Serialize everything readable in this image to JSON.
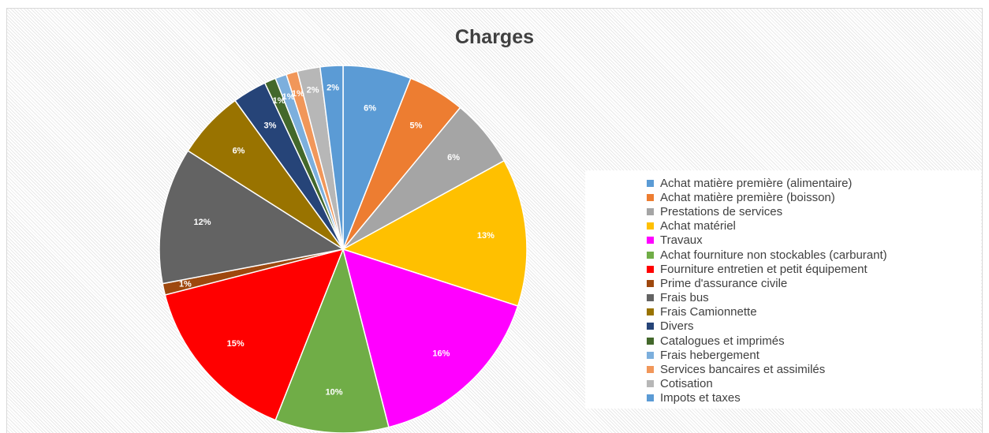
{
  "chart_data": {
    "type": "pie",
    "title": "Charges",
    "legend_position": "right",
    "slices": [
      {
        "label": "Achat matière première (alimentaire)",
        "value": 6,
        "value_label": "6%",
        "color": "#5B9BD5"
      },
      {
        "label": "Achat matière première (boisson)",
        "value": 5,
        "value_label": "5%",
        "color": "#ED7D31"
      },
      {
        "label": "Prestations de services",
        "value": 6,
        "value_label": "6%",
        "color": "#A5A5A5"
      },
      {
        "label": "Achat matériel",
        "value": 13,
        "value_label": "13%",
        "color": "#FFC000"
      },
      {
        "label": "Travaux",
        "value": 16,
        "value_label": "16%",
        "color": "#FF00FF"
      },
      {
        "label": "Achat fourniture non stockables (carburant)",
        "value": 10,
        "value_label": "10%",
        "color": "#70AD47"
      },
      {
        "label": "Fourniture entretien et petit équipement",
        "value": 15,
        "value_label": "15%",
        "color": "#FF0000"
      },
      {
        "label": "Prime d'assurance civile",
        "value": 1,
        "value_label": "1%",
        "color": "#9E480E"
      },
      {
        "label": "Frais bus",
        "value": 12,
        "value_label": "12%",
        "color": "#636363"
      },
      {
        "label": "Frais Camionnette",
        "value": 6,
        "value_label": "6%",
        "color": "#997300"
      },
      {
        "label": "Divers",
        "value": 3,
        "value_label": "3%",
        "color": "#264478"
      },
      {
        "label": "Catalogues et imprimés",
        "value": 1,
        "value_label": "1%",
        "color": "#43682B"
      },
      {
        "label": "Frais hebergement",
        "value": 1,
        "value_label": "1%",
        "color": "#7CAFDD"
      },
      {
        "label": "Services bancaires et assimilés",
        "value": 1,
        "value_label": "1%",
        "color": "#F1975A"
      },
      {
        "label": "Cotisation",
        "value": 2,
        "value_label": "2%",
        "color": "#B7B7B7"
      },
      {
        "label": "Impots et taxes",
        "value": 2,
        "value_label": "2%",
        "color": "#5B9BD5"
      }
    ]
  }
}
